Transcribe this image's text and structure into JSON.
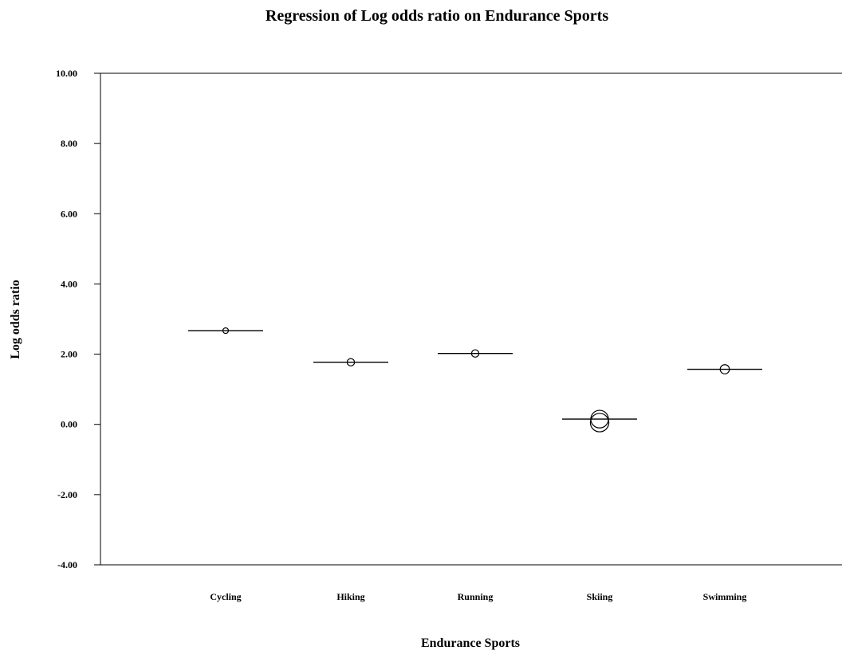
{
  "chart_data": {
    "type": "scatter",
    "title": "Regression of Log odds ratio on Endurance Sports",
    "xlabel": "Endurance Sports",
    "ylabel": "Log odds ratio",
    "categories": [
      "Cycling",
      "Hiking",
      "Running",
      "Skiing",
      "Swimming"
    ],
    "ylim": [
      -4,
      10
    ],
    "yticks": [
      "-4.00",
      "-2.00",
      "0.00",
      "2.00",
      "4.00",
      "6.00",
      "8.00",
      "10.00"
    ],
    "grid": false,
    "legend": "none",
    "series": [
      {
        "values": [
          2.67,
          1.77,
          2.02,
          0.05,
          1.57
        ],
        "relative_weight": [
          0.15,
          0.35,
          0.35,
          2.2,
          0.55
        ]
      }
    ],
    "fitted_lines": [
      2.67,
      1.77,
      2.02,
      0.15,
      1.57
    ],
    "overlay_circle": {
      "category": "Skiing",
      "value": 0.15,
      "relative_weight": 2.0
    }
  }
}
